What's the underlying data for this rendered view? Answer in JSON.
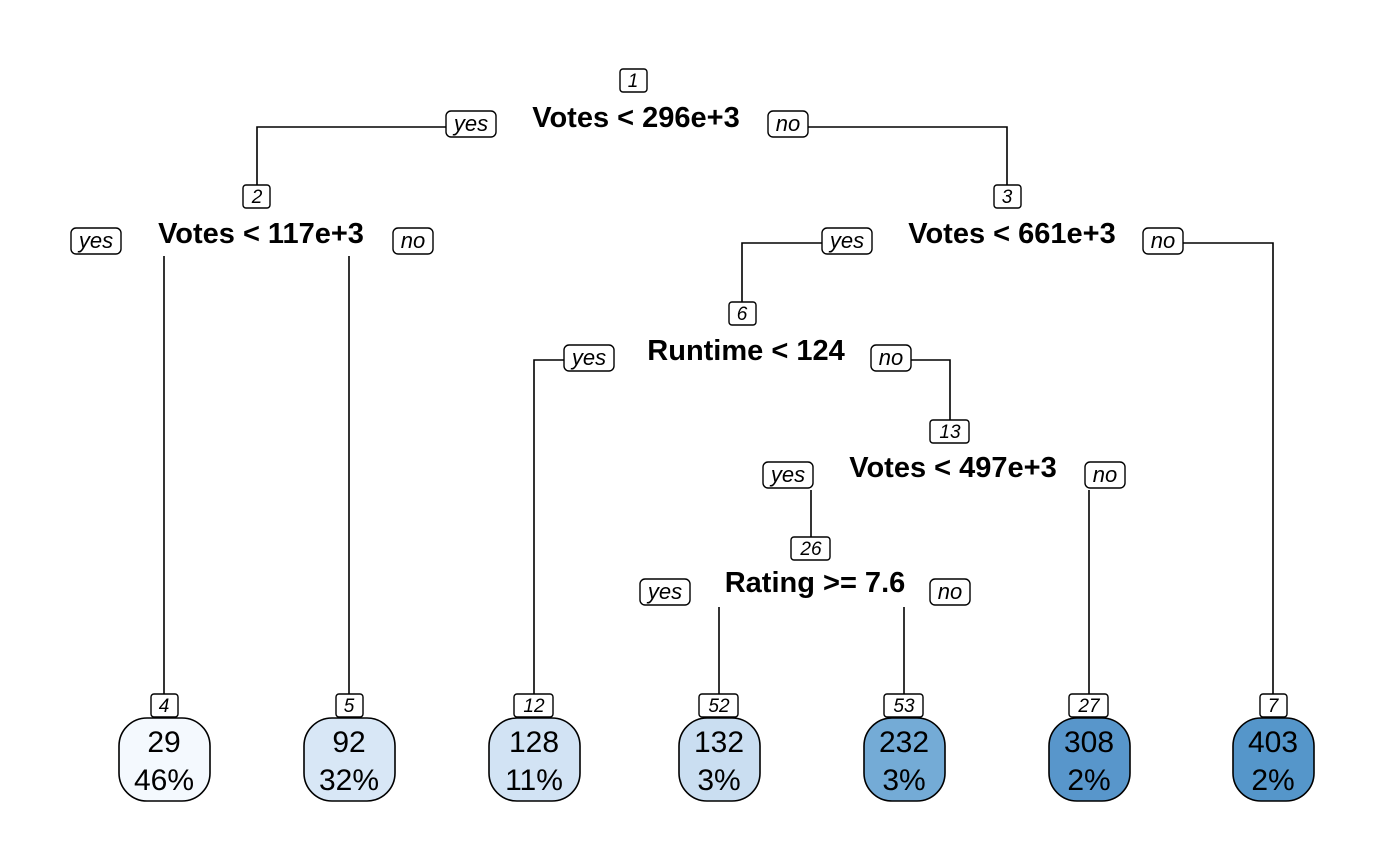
{
  "tree": {
    "nodes": [
      {
        "id": "1",
        "split": "Votes < 296e+3",
        "yes": "yes",
        "no": "no"
      },
      {
        "id": "2",
        "split": "Votes < 117e+3",
        "yes": "yes",
        "no": "no"
      },
      {
        "id": "3",
        "split": "Votes < 661e+3",
        "yes": "yes",
        "no": "no"
      },
      {
        "id": "6",
        "split": "Runtime < 124",
        "yes": "yes",
        "no": "no"
      },
      {
        "id": "13",
        "split": "Votes < 497e+3",
        "yes": "yes",
        "no": "no"
      },
      {
        "id": "26",
        "split": "Rating >= 7.6",
        "yes": "yes",
        "no": "no"
      }
    ],
    "leaves": [
      {
        "id": "4",
        "value": "29",
        "percent": "46%",
        "color": "#f4f9fe"
      },
      {
        "id": "5",
        "value": "92",
        "percent": "32%",
        "color": "#d8e7f6"
      },
      {
        "id": "12",
        "value": "128",
        "percent": "11%",
        "color": "#d2e3f4"
      },
      {
        "id": "52",
        "value": "132",
        "percent": "3%",
        "color": "#cadef1"
      },
      {
        "id": "53",
        "value": "232",
        "percent": "3%",
        "color": "#74abd6"
      },
      {
        "id": "27",
        "value": "308",
        "percent": "2%",
        "color": "#5896cb"
      },
      {
        "id": "7",
        "value": "403",
        "percent": "2%",
        "color": "#5596ca"
      }
    ]
  }
}
